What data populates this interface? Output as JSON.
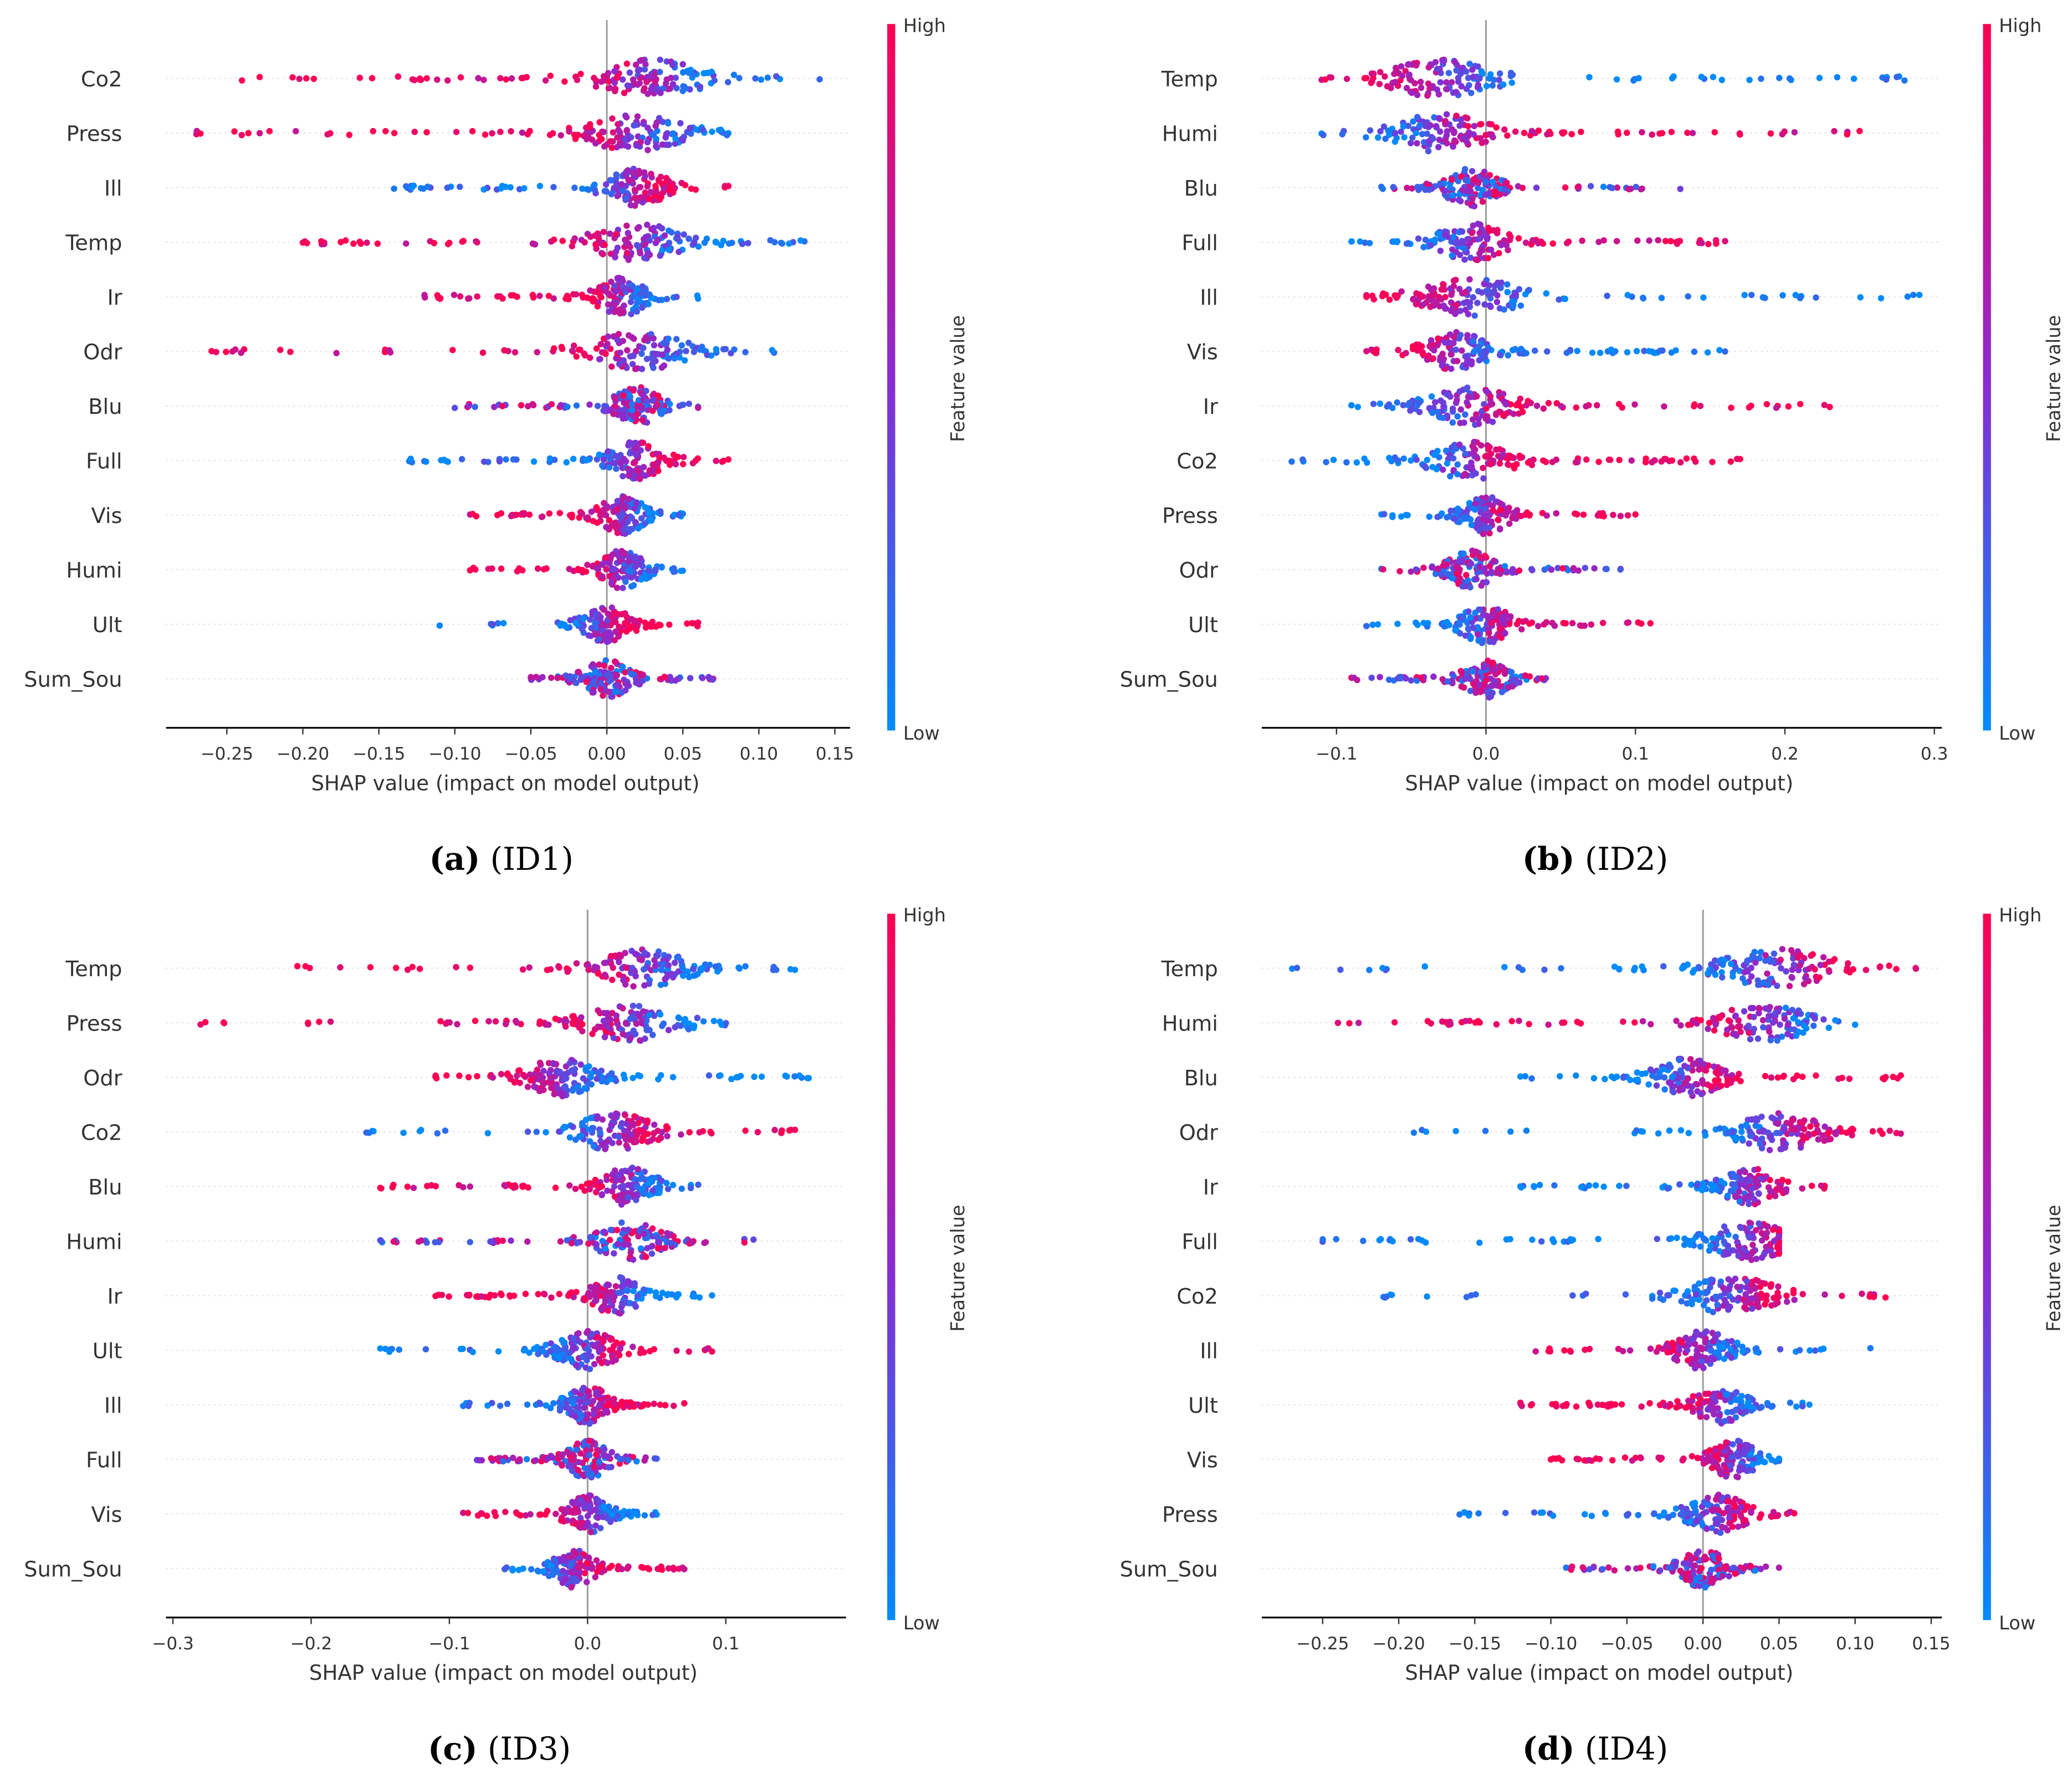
{
  "chart_data": [
    {
      "type": "scatter",
      "subtype": "beeswarm",
      "caption_letter": "(a)",
      "caption_text": " (ID1)",
      "xlabel": "SHAP value (impact on model output)",
      "xticks": [
        -0.25,
        -0.2,
        -0.15,
        -0.1,
        -0.05,
        0.0,
        0.05,
        0.1,
        0.15
      ],
      "xtick_labels": [
        "−0.25",
        "−0.20",
        "−0.15",
        "−0.10",
        "−0.05",
        "0.00",
        "0.05",
        "0.10",
        "0.15"
      ],
      "xlim": [
        -0.29,
        0.16
      ],
      "colorbar": {
        "label": "Feature value",
        "high": "High",
        "low": "Low"
      },
      "features": [
        {
          "name": "Co2",
          "min": -0.24,
          "max": 0.14,
          "center": 0.03,
          "color": "high_left"
        },
        {
          "name": "Press",
          "min": -0.27,
          "max": 0.08,
          "center": 0.02,
          "color": "high_left"
        },
        {
          "name": "Ill",
          "min": -0.14,
          "max": 0.08,
          "center": 0.02,
          "color": "low_left"
        },
        {
          "name": "Temp",
          "min": -0.2,
          "max": 0.13,
          "center": 0.02,
          "color": "high_left"
        },
        {
          "name": "Ir",
          "min": -0.12,
          "max": 0.06,
          "center": 0.01,
          "color": "high_left"
        },
        {
          "name": "Odr",
          "min": -0.26,
          "max": 0.11,
          "center": 0.02,
          "color": "high_left"
        },
        {
          "name": "Blu",
          "min": -0.1,
          "max": 0.06,
          "center": 0.02,
          "color": "mixed"
        },
        {
          "name": "Full",
          "min": -0.13,
          "max": 0.08,
          "center": 0.02,
          "color": "low_left"
        },
        {
          "name": "Vis",
          "min": -0.09,
          "max": 0.05,
          "center": 0.01,
          "color": "high_left"
        },
        {
          "name": "Humi",
          "min": -0.09,
          "max": 0.05,
          "center": 0.01,
          "color": "high_left"
        },
        {
          "name": "Ult",
          "min": -0.11,
          "max": 0.06,
          "center": 0.0,
          "color": "low_left"
        },
        {
          "name": "Sum_Sou",
          "min": -0.05,
          "max": 0.07,
          "center": 0.0,
          "color": "mixed"
        }
      ]
    },
    {
      "type": "scatter",
      "subtype": "beeswarm",
      "caption_letter": "(b)",
      "caption_text": " (ID2)",
      "xlabel": "SHAP value (impact on model output)",
      "xticks": [
        -0.1,
        0.0,
        0.1,
        0.2,
        0.3
      ],
      "xtick_labels": [
        "−0.1",
        "0.0",
        "0.1",
        "0.2",
        "0.3"
      ],
      "xlim": [
        -0.15,
        0.305
      ],
      "colorbar": {
        "label": "Feature value",
        "high": "High",
        "low": "Low"
      },
      "features": [
        {
          "name": "Temp",
          "min": -0.11,
          "max": 0.28,
          "center": -0.03,
          "color": "low_right"
        },
        {
          "name": "Humi",
          "min": -0.11,
          "max": 0.25,
          "center": -0.03,
          "color": "high_right"
        },
        {
          "name": "Blu",
          "min": -0.07,
          "max": 0.13,
          "center": -0.01,
          "color": "mixed"
        },
        {
          "name": "Full",
          "min": -0.09,
          "max": 0.16,
          "center": -0.01,
          "color": "high_right"
        },
        {
          "name": "Ill",
          "min": -0.08,
          "max": 0.29,
          "center": -0.01,
          "color": "low_right"
        },
        {
          "name": "Vis",
          "min": -0.08,
          "max": 0.16,
          "center": -0.02,
          "color": "low_right"
        },
        {
          "name": "Ir",
          "min": -0.09,
          "max": 0.23,
          "center": -0.01,
          "color": "high_right"
        },
        {
          "name": "Co2",
          "min": -0.13,
          "max": 0.17,
          "center": -0.01,
          "color": "high_right"
        },
        {
          "name": "Press",
          "min": -0.07,
          "max": 0.1,
          "center": 0.0,
          "color": "high_right"
        },
        {
          "name": "Odr",
          "min": -0.07,
          "max": 0.09,
          "center": -0.01,
          "color": "mixed"
        },
        {
          "name": "Ult",
          "min": -0.08,
          "max": 0.11,
          "center": 0.0,
          "color": "high_right"
        },
        {
          "name": "Sum_Sou",
          "min": -0.09,
          "max": 0.04,
          "center": 0.0,
          "color": "mixed"
        }
      ]
    },
    {
      "type": "scatter",
      "subtype": "beeswarm",
      "caption_letter": "(c)",
      "caption_text": " (ID3)",
      "xlabel": "SHAP value (impact on model output)",
      "xticks": [
        -0.3,
        -0.2,
        -0.1,
        0.0,
        0.1
      ],
      "xtick_labels": [
        "−0.3",
        "−0.2",
        "−0.1",
        "0.0",
        "0.1"
      ],
      "xlim": [
        -0.305,
        0.187
      ],
      "colorbar": {
        "label": "Feature value",
        "high": "High",
        "low": "Low"
      },
      "features": [
        {
          "name": "Temp",
          "min": -0.21,
          "max": 0.15,
          "center": 0.04,
          "color": "high_left"
        },
        {
          "name": "Press",
          "min": -0.28,
          "max": 0.1,
          "center": 0.03,
          "color": "high_left"
        },
        {
          "name": "Odr",
          "min": -0.11,
          "max": 0.16,
          "center": -0.02,
          "color": "low_right"
        },
        {
          "name": "Co2",
          "min": -0.16,
          "max": 0.15,
          "center": 0.02,
          "color": "high_right"
        },
        {
          "name": "Blu",
          "min": -0.15,
          "max": 0.08,
          "center": 0.03,
          "color": "high_left"
        },
        {
          "name": "Humi",
          "min": -0.15,
          "max": 0.12,
          "center": 0.03,
          "color": "mixed"
        },
        {
          "name": "Ir",
          "min": -0.11,
          "max": 0.09,
          "center": 0.02,
          "color": "high_left"
        },
        {
          "name": "Ult",
          "min": -0.15,
          "max": 0.09,
          "center": 0.0,
          "color": "high_right"
        },
        {
          "name": "Ill",
          "min": -0.09,
          "max": 0.07,
          "center": 0.0,
          "color": "high_right"
        },
        {
          "name": "Full",
          "min": -0.08,
          "max": 0.05,
          "center": 0.0,
          "color": "mixed"
        },
        {
          "name": "Vis",
          "min": -0.09,
          "max": 0.05,
          "center": 0.0,
          "color": "high_left"
        },
        {
          "name": "Sum_Sou",
          "min": -0.06,
          "max": 0.07,
          "center": -0.01,
          "color": "high_right"
        }
      ]
    },
    {
      "type": "scatter",
      "subtype": "beeswarm",
      "caption_letter": "(d)",
      "caption_text": " (ID4)",
      "xlabel": "SHAP value (impact on model output)",
      "xticks": [
        -0.25,
        -0.2,
        -0.15,
        -0.1,
        -0.05,
        0.0,
        0.05,
        0.1,
        0.15
      ],
      "xtick_labels": [
        "−0.25",
        "−0.20",
        "−0.15",
        "−0.10",
        "−0.05",
        "0.00",
        "0.05",
        "0.10",
        "0.15"
      ],
      "xlim": [
        -0.29,
        0.157
      ],
      "colorbar": {
        "label": "Feature value",
        "high": "High",
        "low": "Low"
      },
      "features": [
        {
          "name": "Temp",
          "min": -0.27,
          "max": 0.14,
          "center": 0.05,
          "color": "high_right"
        },
        {
          "name": "Humi",
          "min": -0.24,
          "max": 0.1,
          "center": 0.04,
          "color": "high_left"
        },
        {
          "name": "Blu",
          "min": -0.12,
          "max": 0.13,
          "center": -0.01,
          "color": "high_right"
        },
        {
          "name": "Odr",
          "min": -0.19,
          "max": 0.13,
          "center": 0.05,
          "color": "high_right"
        },
        {
          "name": "Ir",
          "min": -0.12,
          "max": 0.08,
          "center": 0.03,
          "color": "high_right"
        },
        {
          "name": "Full",
          "min": -0.25,
          "max": 0.05,
          "center": 0.03,
          "color": "high_right"
        },
        {
          "name": "Co2",
          "min": -0.21,
          "max": 0.12,
          "center": 0.02,
          "color": "high_right"
        },
        {
          "name": "Ill",
          "min": -0.11,
          "max": 0.11,
          "center": 0.0,
          "color": "high_left"
        },
        {
          "name": "Ult",
          "min": -0.12,
          "max": 0.07,
          "center": 0.01,
          "color": "high_left"
        },
        {
          "name": "Vis",
          "min": -0.1,
          "max": 0.05,
          "center": 0.02,
          "color": "high_left"
        },
        {
          "name": "Press",
          "min": -0.16,
          "max": 0.06,
          "center": 0.01,
          "color": "high_right"
        },
        {
          "name": "Sum_Sou",
          "min": -0.09,
          "max": 0.05,
          "center": 0.0,
          "color": "mixed"
        }
      ]
    }
  ],
  "colors": {
    "low": "#008bfb",
    "mid": "#8a2bd0",
    "high": "#ff0052"
  }
}
